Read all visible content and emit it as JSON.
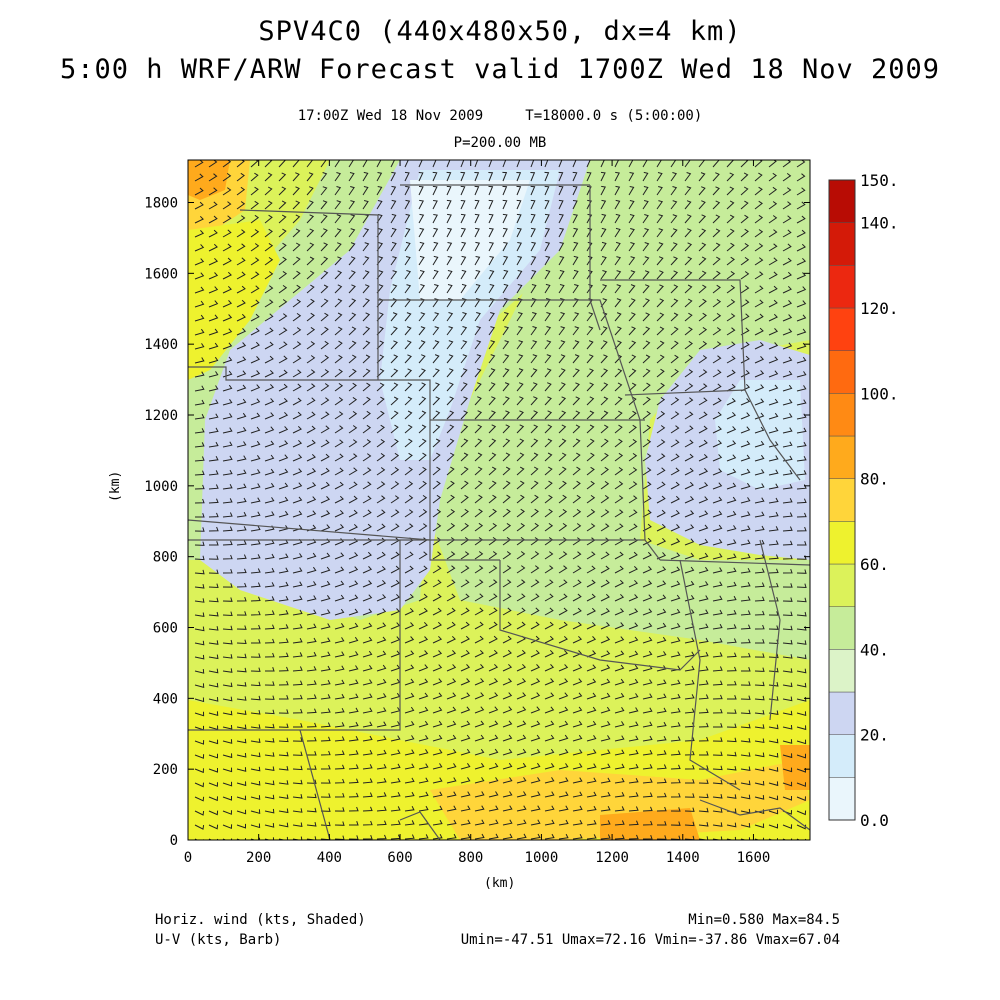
{
  "title": {
    "line1": "SPV4C0 (440x480x50, dx=4 km)",
    "line2": "5:00 h WRF/ARW Forecast valid 1700Z Wed 18 Nov 2009"
  },
  "subtitle": {
    "valid_time": "17:00Z Wed 18 Nov 2009     T=18000.0 s (5:00:00)",
    "pressure_level": "P=200.00 MB"
  },
  "axes": {
    "x_label": "(km)",
    "y_label": "(km)",
    "x_ticks": [
      0,
      200,
      400,
      600,
      800,
      1000,
      1200,
      1400,
      1600
    ],
    "y_ticks": [
      0,
      200,
      400,
      600,
      800,
      1000,
      1200,
      1400,
      1600,
      1800
    ],
    "x_range": [
      0,
      1760
    ],
    "y_range": [
      0,
      1920
    ]
  },
  "colorbar": {
    "tick_labels": [
      "150.",
      "140.",
      "120.",
      "100.",
      "80.",
      "60.",
      "40.",
      "20.",
      "0.0"
    ],
    "levels": [
      0,
      10,
      20,
      30,
      40,
      50,
      60,
      70,
      80,
      90,
      100,
      110,
      120,
      130,
      140,
      150
    ],
    "colors": [
      "#eaf6fc",
      "#d4ecfa",
      "#cdd6f2",
      "#dcf3c8",
      "#c6ec9a",
      "#dcf25a",
      "#eef22e",
      "#ffd53a",
      "#ffaa1c",
      "#ff8a14",
      "#ff6a10",
      "#ff4210",
      "#ec2810",
      "#d41a08",
      "#b80c04"
    ]
  },
  "footer": {
    "left_line1": "Horiz. wind (kts, Shaded)",
    "left_line2": "U-V (kts, Barb)",
    "right_line1": "Min=0.580 Max=84.5",
    "right_line2": "Umin=-47.51 Umax=72.16 Vmin=-37.86 Vmax=67.04"
  },
  "field_stats": {
    "min": 0.58,
    "max": 84.5,
    "umin": -47.51,
    "umax": 72.16,
    "vmin": -37.86,
    "vmax": 67.04
  },
  "colors": {
    "barb": "#222222",
    "state_lines": "#555555"
  }
}
